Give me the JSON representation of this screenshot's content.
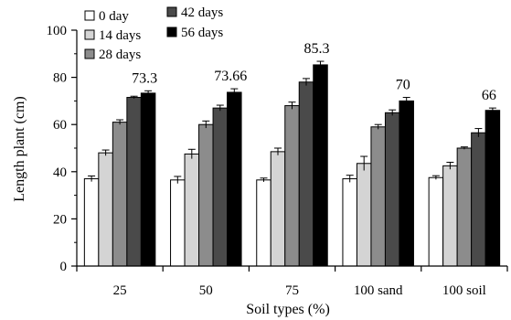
{
  "chart_data": {
    "type": "bar",
    "title": "",
    "xlabel": "Soil types (%)",
    "ylabel": "Length plant (cm)",
    "ylim": [
      0,
      100
    ],
    "yticks": [
      0,
      20,
      40,
      60,
      80,
      100
    ],
    "categories": [
      "25",
      "50",
      "75",
      "100 sand",
      "100 soil"
    ],
    "series": [
      {
        "name": "0 day",
        "color": "#ffffff",
        "values": [
          37,
          36.5,
          36.5,
          37,
          37.5
        ],
        "errors": [
          1.2,
          1.5,
          0.8,
          1.5,
          0.8
        ]
      },
      {
        "name": "14 days",
        "color": "#d4d4d4",
        "values": [
          48,
          47.5,
          48.5,
          43.5,
          42.5
        ],
        "errors": [
          1.2,
          2,
          1.5,
          3,
          1.5
        ]
      },
      {
        "name": "28 days",
        "color": "#8c8c8c",
        "values": [
          61,
          60,
          68,
          59,
          50
        ],
        "errors": [
          1,
          1.5,
          1.5,
          1,
          0.5
        ]
      },
      {
        "name": "42 days",
        "color": "#4a4a4a",
        "values": [
          71.5,
          67,
          78,
          65,
          56.5
        ],
        "errors": [
          0.5,
          1.2,
          1.5,
          1.2,
          1.8
        ]
      },
      {
        "name": "56 days",
        "color": "#000000",
        "values": [
          73.3,
          73.66,
          85.3,
          70,
          66
        ],
        "errors": [
          1,
          1.5,
          1.5,
          1.5,
          1
        ]
      }
    ],
    "data_labels": [
      "73.3",
      "73.66",
      "85.3",
      "70",
      "66"
    ],
    "legend_position": "top-left",
    "grid": false
  }
}
